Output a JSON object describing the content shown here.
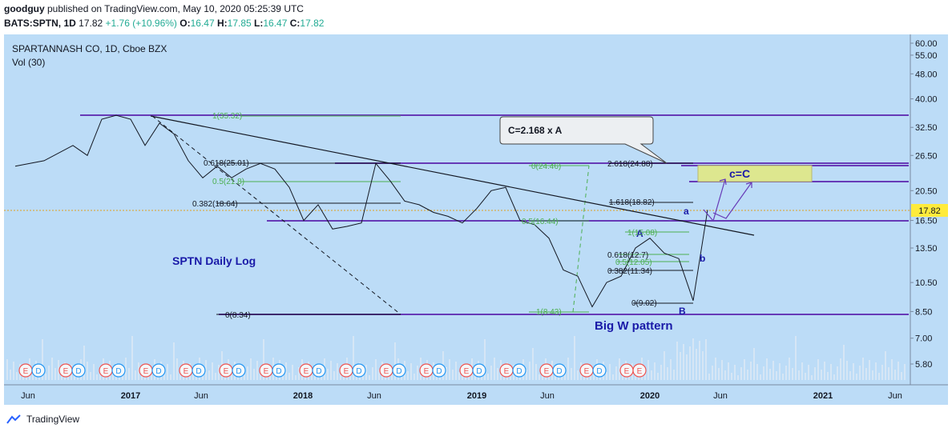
{
  "header": {
    "author": "goodguy",
    "published": "published on TradingView.com, May 10, 2020 05:25:39 UTC",
    "symbol": "BATS:SPTN, 1D",
    "last": "17.82",
    "change": "+1.76 (+10.96%)",
    "o_label": "O:",
    "o": "16.47",
    "h_label": "H:",
    "h": "17.85",
    "l_label": "L:",
    "l": "16.47",
    "c_label": "C:",
    "c": "17.82"
  },
  "legend": {
    "title": "SPARTANNASH CO, 1D, Cboe BZX",
    "volume": "Vol (30)"
  },
  "colors": {
    "background": "#bcdcf7",
    "purple": "#673ab7",
    "fib_green": "#4caf50",
    "price_tag": "#ffeb3b",
    "earnings": "#ef5350",
    "dividend": "#2196f3",
    "text_blue": "#1a1aa8",
    "target_box": "#dde78f"
  },
  "annotations": {
    "title_note": "SPTN Daily Log",
    "pattern_note": "Big W pattern",
    "callout": "C=2.168 x A",
    "box_label": "c=C",
    "wave_A": "A",
    "wave_B": "B",
    "wave_a": "a",
    "wave_b": "b"
  },
  "fib_labels": {
    "f1": "1(35.32)",
    "f2": "0.618(25.01)",
    "f3": "0.5(21.8)",
    "f4": "0.382(18.64)",
    "f5": "0(8.34)",
    "f6": "0(24.46)",
    "f7": "0.5(16.44)",
    "f8": "1(8.43)",
    "f9": "2.618(24.88)",
    "f10": "1.618(18.82)",
    "f11": "1(15.08)",
    "f12": "0.618(12.7)",
    "f13": "0.5(12.05)",
    "f14": "0.382(11.34)",
    "f15": "0(9.02)"
  },
  "footer": {
    "brand": "TradingView"
  },
  "chart_data": {
    "type": "line",
    "scale": "log",
    "title": "SPARTANNASH CO, 1D, Cboe BZX",
    "x_ticks": [
      "Jun",
      "2017",
      "Jun",
      "2018",
      "Jun",
      "2019",
      "Jun",
      "2020",
      "Jun",
      "2021",
      "Jun"
    ],
    "y_ticks": [
      "60.00",
      "55.00",
      "48.00",
      "40.00",
      "32.50",
      "26.50",
      "20.50",
      "16.50",
      "13.50",
      "10.50",
      "8.50",
      "7.00",
      "5.80"
    ],
    "current_price": "17.82",
    "price_series": {
      "dates": [
        "2016-05",
        "2016-07",
        "2016-09",
        "2016-10",
        "2016-11",
        "2016-12",
        "2017-01",
        "2017-02",
        "2017-03",
        "2017-04",
        "2017-05",
        "2017-06",
        "2017-07",
        "2017-08",
        "2017-09",
        "2017-10",
        "2017-11",
        "2017-12",
        "2018-01",
        "2018-02",
        "2018-03",
        "2018-04",
        "2018-05",
        "2018-06",
        "2018-07",
        "2018-08",
        "2018-09",
        "2018-10",
        "2018-11",
        "2018-12",
        "2019-01",
        "2019-02",
        "2019-03",
        "2019-04",
        "2019-05",
        "2019-06",
        "2019-07",
        "2019-08",
        "2019-09",
        "2019-10",
        "2019-11",
        "2019-12",
        "2020-01",
        "2020-02",
        "2020-03",
        "2020-04",
        "2020-05"
      ],
      "close": [
        24.5,
        25.5,
        28.5,
        26.5,
        34.5,
        35.5,
        34.5,
        28.5,
        33.5,
        31.0,
        25.5,
        22.5,
        24.5,
        22.5,
        24.0,
        25.0,
        24.0,
        21.0,
        16.5,
        18.5,
        15.5,
        15.8,
        16.2,
        25.0,
        22.0,
        19.0,
        18.5,
        17.5,
        17.0,
        16.2,
        18.0,
        20.5,
        21.0,
        16.5,
        16.0,
        14.5,
        11.5,
        11.0,
        8.8,
        10.5,
        11.0,
        13.5,
        14.5,
        13.0,
        12.5,
        9.2,
        17.82
      ]
    },
    "horizontal_levels": [
      35.32,
      25.01,
      24.88,
      21.8,
      16.44,
      8.34
    ],
    "fib_retracement_1": {
      "1": 35.32,
      "0.618": 25.01,
      "0.5": 21.8,
      "0.382": 18.64,
      "0": 8.34
    },
    "fib_extension": {
      "0": 24.46,
      "0.5": 16.44,
      "1": 8.43
    },
    "fib_retracement_2": {
      "2.618": 24.88,
      "1.618": 18.82,
      "1": 15.08,
      "0.618": 12.7,
      "0.5": 12.05,
      "0.382": 11.34,
      "0": 9.02
    },
    "volume_label": "Vol (30)",
    "events": [
      "E",
      "D",
      "E",
      "D",
      "E",
      "D",
      "E",
      "D",
      "E",
      "D",
      "E",
      "D",
      "E",
      "D",
      "E",
      "D",
      "E",
      "D",
      "E",
      "D",
      "E",
      "D",
      "E",
      "D",
      "E",
      "D",
      "E",
      "D",
      "E",
      "D",
      "E",
      "E"
    ]
  }
}
